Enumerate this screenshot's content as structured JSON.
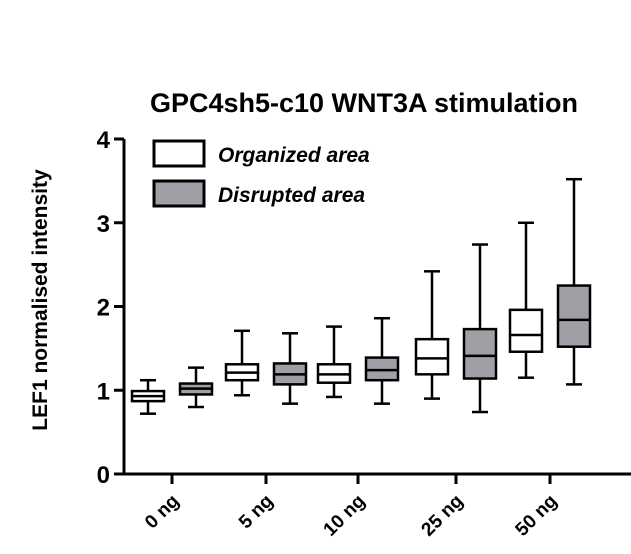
{
  "chart_data": {
    "type": "boxplot",
    "title": "GPC4sh5-c10 WNT3A stimulation",
    "ylabel": "LEF1 normalised intensity",
    "xlabel": "",
    "ylim": [
      0,
      4
    ],
    "yticks": [
      "0",
      "1",
      "2",
      "3",
      "4"
    ],
    "categories": [
      "0 ng",
      "5 ng",
      "10 ng",
      "25 ng",
      "50 ng"
    ],
    "legend_position": "top-left",
    "series": [
      {
        "name": "Organized area",
        "color": "#ffffff",
        "boxes": [
          {
            "min": 0.72,
            "q1": 0.87,
            "median": 0.93,
            "q3": 0.99,
            "max": 1.12
          },
          {
            "min": 0.94,
            "q1": 1.12,
            "median": 1.21,
            "q3": 1.31,
            "max": 1.71
          },
          {
            "min": 0.92,
            "q1": 1.09,
            "median": 1.19,
            "q3": 1.31,
            "max": 1.76
          },
          {
            "min": 0.9,
            "q1": 1.19,
            "median": 1.38,
            "q3": 1.61,
            "max": 2.42
          },
          {
            "min": 1.15,
            "q1": 1.46,
            "median": 1.66,
            "q3": 1.96,
            "max": 3.0
          }
        ]
      },
      {
        "name": "Disrupted area",
        "color": "#9ea0a5",
        "boxes": [
          {
            "min": 0.8,
            "q1": 0.95,
            "median": 1.02,
            "q3": 1.08,
            "max": 1.27
          },
          {
            "min": 0.84,
            "q1": 1.07,
            "median": 1.19,
            "q3": 1.32,
            "max": 1.68
          },
          {
            "min": 0.84,
            "q1": 1.12,
            "median": 1.24,
            "q3": 1.39,
            "max": 1.86
          },
          {
            "min": 0.74,
            "q1": 1.14,
            "median": 1.41,
            "q3": 1.73,
            "max": 2.74
          },
          {
            "min": 1.07,
            "q1": 1.52,
            "median": 1.84,
            "q3": 2.25,
            "max": 3.52
          }
        ]
      }
    ]
  }
}
